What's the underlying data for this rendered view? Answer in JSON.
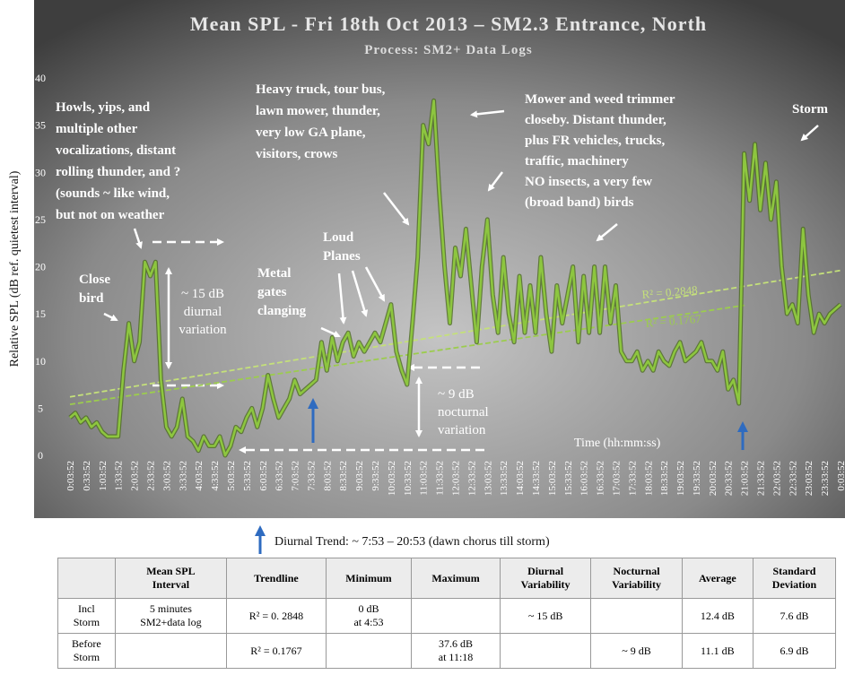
{
  "chart_data": {
    "type": "line",
    "title": "Mean SPL - Fri 18th Oct 2013 – SM2.3 Entrance, North",
    "subtitle": "Process:  SM2+ Data Logs",
    "y_label": "Relative SPL (dB ref. quietest interval)",
    "x_label": "Time (hh:mm:ss)",
    "categories": [
      "0:03:52",
      null,
      null,
      "0:33:52",
      null,
      null,
      "1:03:52",
      null,
      null,
      "1:33:52",
      null,
      null,
      "2:03:52",
      null,
      null,
      "2:33:52",
      null,
      null,
      "3:03:52",
      null,
      null,
      "3:33:52",
      null,
      null,
      "4:03:52",
      null,
      null,
      "4:33:52",
      null,
      null,
      "5:03:52",
      null,
      null,
      "5:33:52",
      null,
      null,
      "6:03:52",
      null,
      null,
      "6:33:52",
      null,
      null,
      "7:03:52",
      null,
      null,
      "7:33:52",
      null,
      null,
      "8:03:52",
      null,
      null,
      "8:33:52",
      null,
      null,
      "9:03:52",
      null,
      null,
      "9:33:52",
      null,
      null,
      "10:03:52",
      null,
      null,
      "10:33:52",
      null,
      null,
      "11:03:52",
      null,
      null,
      "11:33:52",
      null,
      null,
      "12:03:52",
      null,
      null,
      "12:33:52",
      null,
      null,
      "13:03:52",
      null,
      null,
      "13:33:52",
      null,
      null,
      "14:03:52",
      null,
      null,
      "14:33:52",
      null,
      null,
      "15:03:52",
      null,
      null,
      "15:33:52",
      null,
      null,
      "16:03:52",
      null,
      null,
      "16:33:52",
      null,
      null,
      "17:03:52",
      null,
      null,
      "17:33:52",
      null,
      null,
      "18:03:52",
      null,
      null,
      "18:33:52",
      null,
      null,
      "19:03:52",
      null,
      null,
      "19:33:52",
      null,
      null,
      "20:03:52",
      null,
      null,
      "20:33:52",
      null,
      null,
      "21:03:52",
      null,
      null,
      "21:33:52",
      null,
      null,
      "22:03:52",
      null,
      null,
      "22:33:52",
      null,
      null,
      "23:03:52",
      null,
      null,
      "23:33:52",
      null,
      null,
      "0:03:52"
    ],
    "series": [
      {
        "color": "#8dc63f",
        "values": [
          4,
          4.5,
          3.5,
          4,
          3,
          3.5,
          2.5,
          2,
          2,
          2,
          9,
          14,
          10,
          12,
          20.5,
          19,
          20.5,
          8,
          3,
          2,
          3,
          6,
          2,
          1.5,
          0.5,
          2,
          1,
          1,
          2,
          0,
          1,
          3,
          2.5,
          4,
          5,
          3,
          5,
          8.5,
          6,
          4,
          5,
          6,
          8,
          6.5,
          7,
          7.5,
          8,
          12,
          9,
          12.5,
          10,
          12,
          13,
          10.5,
          12,
          11,
          12,
          13,
          12,
          14,
          16,
          11,
          9,
          7.5,
          14,
          21,
          35,
          33,
          37.6,
          28,
          20,
          14,
          22,
          19,
          24,
          18,
          12,
          20,
          25,
          17,
          13,
          21,
          15,
          12,
          19,
          13,
          18,
          13,
          21,
          15,
          11,
          18,
          14,
          17,
          20,
          12,
          19,
          13,
          20,
          13,
          20,
          14,
          18,
          11,
          10,
          10,
          11,
          9,
          10,
          9,
          11,
          10,
          9.5,
          11,
          12,
          10,
          10.5,
          11,
          12,
          10,
          10,
          9,
          11,
          7,
          8,
          5.5,
          32,
          27,
          33,
          26,
          31,
          25,
          29,
          20,
          15,
          16,
          14,
          24,
          17,
          13,
          15,
          14,
          15,
          15.5,
          16
        ]
      }
    ],
    "trendlines": [
      {
        "label": "R² = 0.2848",
        "color": "#c4e07a",
        "start": 6.2,
        "end": 19.6,
        "end_category": "0:03:52"
      },
      {
        "label": "R² = 0.1767",
        "color": "#9ccc4e",
        "start": 5.4,
        "end": 15.9,
        "end_category": "21:03:52"
      }
    ],
    "ylim": [
      0,
      40
    ],
    "yticks": [
      0,
      5,
      10,
      15,
      20,
      25,
      30,
      35,
      40
    ],
    "grid": false,
    "annotations": [
      {
        "lines": [
          "Howls, yips, and",
          "multiple other",
          "vocalizations, distant",
          "rolling thunder, and ?",
          "(sounds ~ like wind,",
          "but not on weather"
        ]
      },
      {
        "lines": [
          "Heavy truck, tour bus,",
          "lawn mower, thunder,",
          "very low GA plane,",
          "visitors, crows"
        ]
      },
      {
        "lines": [
          "Mower and weed trimmer",
          "closeby.  Distant thunder,",
          "plus FR vehicles, trucks,",
          "traffic, machinery",
          "NO insects, a very few",
          "(broad band) birds"
        ]
      },
      {
        "lines": [
          "Storm"
        ]
      },
      {
        "lines": [
          "Close",
          "bird"
        ]
      },
      {
        "lines": [
          "Loud",
          "Planes"
        ]
      },
      {
        "lines": [
          "Metal",
          "gates",
          "clanging"
        ]
      },
      {
        "lines": [
          "~ 15 dB",
          "diurnal",
          "variation"
        ]
      },
      {
        "lines": [
          "~ 9 dB",
          "nocturnal",
          "variation"
        ]
      }
    ]
  },
  "note": "Diurnal Trend: ~ 7:53 – 20:53 (dawn chorus till storm)",
  "table": {
    "header": [
      [
        "Mean SPL",
        "Interval"
      ],
      [
        "Trendline"
      ],
      [
        "Minimum"
      ],
      [
        "Maximum"
      ],
      [
        "Diurnal",
        "Variability"
      ],
      [
        "Nocturnal",
        "Variability"
      ],
      [
        "Average"
      ],
      [
        "Standard",
        "Deviation"
      ]
    ],
    "rows": [
      [
        [
          "Incl",
          "Storm"
        ],
        [
          "5 minutes",
          "SM2+data log"
        ],
        [
          "R² = 0. 2848"
        ],
        [
          "0 dB",
          "at 4:53"
        ],
        null,
        [
          "~ 15 dB"
        ],
        null,
        [
          "12.4 dB"
        ],
        [
          "7.6 dB"
        ]
      ],
      [
        [
          "Before",
          "Storm"
        ],
        null,
        [
          "R² = 0.1767"
        ],
        null,
        [
          "37.6 dB",
          "at 11:18"
        ],
        null,
        [
          "~ 9 dB"
        ],
        [
          "11.1 dB"
        ],
        [
          "6.9 dB"
        ]
      ]
    ]
  }
}
